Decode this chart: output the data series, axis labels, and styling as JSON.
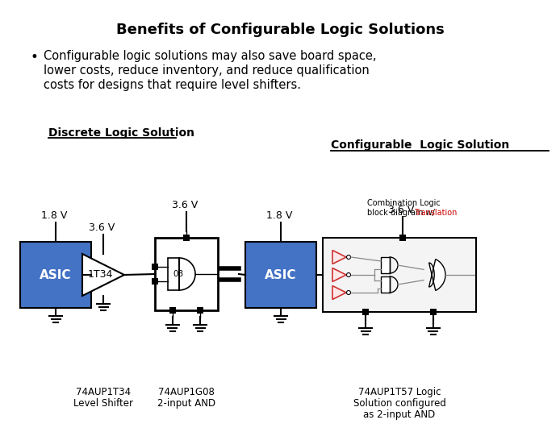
{
  "title": "Benefits of Configurable Logic Solutions",
  "bullet_text_line1": "Configurable logic solutions may also save board space,",
  "bullet_text_line2": "lower costs, reduce inventory, and reduce qualification",
  "bullet_text_line3": "costs for designs that require level shifters.",
  "discrete_label": "Discrete Logic Solution",
  "config_label": "Configurable  Logic Solution",
  "asic1_label": "ASIC",
  "asic2_label": "ASIC",
  "buffer_label": "1T34",
  "and_label": "08",
  "vcc1": "1.8 V",
  "vcc2": "3.6 V",
  "vcc3": "3.6 V",
  "vcc4": "1.8 V",
  "vcc5": "3.6 V",
  "combo_text_line1": "Combination Logic",
  "combo_text_line2": "block diagram w/",
  "combo_text_red": "Translation",
  "label1_line1": "74AUP1T34",
  "label1_line2": "Level Shifter",
  "label2_line1": "74AUP1G08",
  "label2_line2": "2-input AND",
  "label3_line1": "74AUP1T57 Logic",
  "label3_line2": "Solution configured",
  "label3_line3": "as 2-input AND",
  "blue": "#4472C4",
  "black": "#000000",
  "white": "#FFFFFF",
  "red": "#CC0000",
  "dark_red": "#CC3333",
  "bg": "#FFFFFF",
  "inner_bg": "#F4F4F4",
  "gray_wire": "#888888"
}
